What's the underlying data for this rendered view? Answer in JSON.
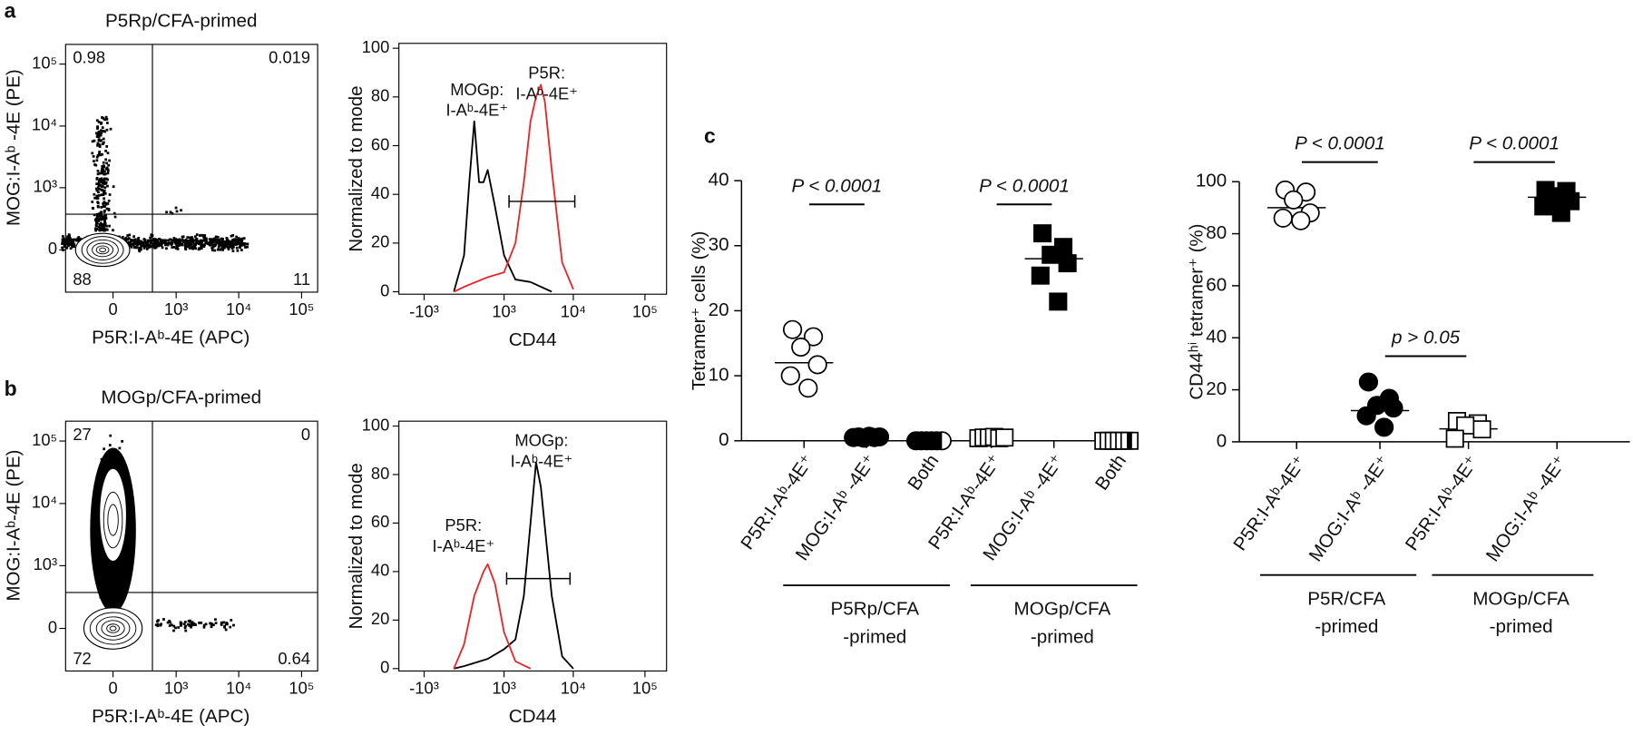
{
  "panel_labels": [
    "a",
    "b",
    "c"
  ],
  "chart_data": [
    {
      "type": "flow",
      "title": "P5Rp/CFA-primed",
      "x_label": "P5R:I-Aᵇ-4E (APC)",
      "y_label": "MOG:I-Aᵇ -4E (PE)",
      "xscale": "asinh",
      "yscale": "asinh",
      "linear_width": 200,
      "xlim": [
        -550,
        180000
      ],
      "ylim": [
        -460,
        208000
      ],
      "xticks": [
        0,
        {
          "value": 1000,
          "label": "10³"
        },
        {
          "value": 10000,
          "label": "10⁴"
        },
        {
          "value": 100000,
          "label": "10⁵"
        }
      ],
      "yticks": [
        0,
        {
          "value": 1000,
          "label": "10³"
        },
        {
          "value": 10000,
          "label": "10⁴"
        },
        {
          "value": 100000,
          "label": "10⁵"
        }
      ],
      "gates": [
        400,
        350
      ],
      "quadrants": [
        0.98,
        0.019,
        88,
        11
      ]
    },
    {
      "type": "histogram",
      "x_label": "CD44",
      "y_label": "Normalized to mode",
      "xscale": "asinh",
      "linear_width": 600,
      "xlim": [
        -2400,
        200000
      ],
      "ylim": [
        -1,
        102
      ],
      "xticks": [
        {
          "value": -1000,
          "label": "-10³"
        },
        {
          "value": 1000,
          "label": "10³"
        },
        {
          "value": 10000,
          "label": "10⁴"
        },
        {
          "value": 100000,
          "label": "10⁵"
        }
      ],
      "yticks": [
        0,
        20,
        40,
        60,
        80,
        100
      ],
      "gate": [
        1200,
        10500
      ],
      "series": [
        {
          "label_lines": [
            "MOGp:",
            "I-Aᵇ-4E⁺"
          ],
          "color": "#000000",
          "x": [
            -200,
            0,
            100,
            200,
            300,
            400,
            500,
            700,
            1000,
            1500,
            2500,
            5000
          ],
          "values": [
            0,
            15,
            45,
            70,
            45,
            45,
            50,
            35,
            15,
            5,
            4,
            0
          ]
        },
        {
          "label_lines": [
            "P5R:",
            "I-Aᵇ-4E⁺"
          ],
          "color": "#e8262a",
          "x": [
            -200,
            0,
            500,
            1000,
            1500,
            2000,
            2500,
            3000,
            3500,
            4000,
            5000,
            7000,
            10000
          ],
          "values": [
            0,
            2,
            6,
            8,
            20,
            45,
            70,
            80,
            85,
            78,
            50,
            12,
            1
          ]
        }
      ]
    },
    {
      "type": "flow",
      "title": "MOGp/CFA-primed",
      "x_label": "P5R:I-Aᵇ-4E (APC)",
      "y_label": "MOG:I-Aᵇ-4E (PE)",
      "xscale": "asinh",
      "yscale": "asinh",
      "linear_width": 200,
      "xlim": [
        -550,
        180000
      ],
      "ylim": [
        -460,
        208000
      ],
      "xticks": [
        0,
        {
          "value": 1000,
          "label": "10³"
        },
        {
          "value": 10000,
          "label": "10⁴"
        },
        {
          "value": 100000,
          "label": "10⁵"
        }
      ],
      "yticks": [
        0,
        {
          "value": 1000,
          "label": "10³"
        },
        {
          "value": 10000,
          "label": "10⁴"
        },
        {
          "value": 100000,
          "label": "10⁵"
        }
      ],
      "gates": [
        400,
        350
      ],
      "quadrants": [
        27,
        0,
        72,
        0.64
      ]
    },
    {
      "type": "histogram",
      "x_label": "CD44",
      "y_label": "Normalized to mode",
      "xscale": "asinh",
      "linear_width": 600,
      "xlim": [
        -2400,
        200000
      ],
      "ylim": [
        -1,
        102
      ],
      "xticks": [
        {
          "value": -1000,
          "label": "-10³"
        },
        {
          "value": 1000,
          "label": "10³"
        },
        {
          "value": 10000,
          "label": "10⁴"
        },
        {
          "value": 100000,
          "label": "10⁵"
        }
      ],
      "yticks": [
        0,
        20,
        40,
        60,
        80,
        100
      ],
      "gate": [
        1100,
        9000
      ],
      "series": [
        {
          "label_lines": [
            "MOGp:",
            "I-Aᵇ-4E⁺"
          ],
          "color": "#000000",
          "x": [
            -200,
            0,
            500,
            1000,
            1500,
            2000,
            2500,
            3000,
            3500,
            5000,
            7000,
            10000
          ],
          "values": [
            0,
            1,
            4,
            8,
            12,
            30,
            60,
            85,
            75,
            30,
            5,
            0
          ]
        },
        {
          "label_lines": [
            "P5R:",
            "I-Aᵇ-4E⁺"
          ],
          "color": "#e8262a",
          "x": [
            -200,
            0,
            200,
            400,
            500,
            700,
            1000,
            1500,
            2500
          ],
          "values": [
            0,
            10,
            30,
            40,
            43,
            35,
            15,
            3,
            0
          ]
        }
      ]
    },
    {
      "type": "dotplot",
      "y_label": "Tetramer⁺ cells (%)",
      "ylim": [
        0,
        40
      ],
      "yticks": [
        0,
        10,
        20,
        30,
        40
      ],
      "categories": [
        "P5R:I-Aᵇ-4E⁺",
        "MOG:I-Aᵇ -4E⁺",
        "Both",
        "P5R:I-Aᵇ-4E⁺",
        "MOG:I-Aᵇ -4E⁺",
        "Both"
      ],
      "markers": [
        "open-circle",
        "filled-circle",
        "half-circle",
        "open-square",
        "filled-square",
        "half-square"
      ],
      "values": [
        [
          17.1,
          16,
          14.4,
          11.7,
          10,
          8.1
        ],
        [
          0.5,
          0.6,
          0.4,
          0.7,
          0.5,
          0.6
        ],
        [
          0,
          0,
          0,
          0,
          0,
          0
        ],
        [
          0.4,
          0.5,
          0.5,
          0.6,
          0.4,
          0.5
        ],
        [
          31.9,
          29.8,
          28.6,
          27.3,
          25.4,
          21.4
        ],
        [
          0,
          0,
          0,
          0,
          0,
          0
        ]
      ],
      "means": [
        12,
        null,
        null,
        null,
        28,
        null
      ],
      "groups": [
        {
          "label_lines": [
            "P5Rp/CFA",
            "-primed"
          ],
          "from": 0,
          "to": 2
        },
        {
          "label_lines": [
            "MOGp/CFA",
            "-primed"
          ],
          "from": 3,
          "to": 5
        }
      ],
      "comparisons": [
        {
          "label": "P < 0.0001",
          "from": 0,
          "to": 1
        },
        {
          "label": "P < 0.0001",
          "from": 3,
          "to": 4
        }
      ]
    },
    {
      "type": "dotplot",
      "y_label": "CD44ʰⁱ tetramer⁺ (%)",
      "ylim": [
        0,
        100
      ],
      "yticks": [
        0,
        20,
        40,
        60,
        80,
        100
      ],
      "categories": [
        "P5R:I-Aᵇ-4E⁺",
        "MOG:I-Aᵇ -4E⁺",
        "P5R:I-Aᵇ-4E⁺",
        "MOG:I-Aᵇ -4E⁺"
      ],
      "markers": [
        "open-circle",
        "filled-circle",
        "open-square",
        "filled-square"
      ],
      "values": [
        [
          96.8,
          96,
          93,
          88,
          86,
          85
        ],
        [
          23,
          16.7,
          14,
          13,
          10,
          5.6
        ],
        [
          8,
          7.1,
          6.3,
          4.8,
          1.2
        ],
        [
          96.8,
          96.4,
          94.4,
          92.5,
          90.5,
          88
        ]
      ],
      "means": [
        90,
        12,
        5,
        94
      ],
      "groups": [
        {
          "label_lines": [
            "P5R/CFA",
            "-primed"
          ],
          "from": 0,
          "to": 1
        },
        {
          "label_lines": [
            "MOGp/CFA",
            "-primed"
          ],
          "from": 2,
          "to": 3
        }
      ],
      "comparisons": [
        {
          "label": "P < 0.0001",
          "from": 0,
          "to": 1
        },
        {
          "label": "P < 0.0001",
          "from": 2,
          "to": 3
        },
        {
          "label": "p > 0.05",
          "from": 1,
          "to": 2
        }
      ]
    }
  ]
}
